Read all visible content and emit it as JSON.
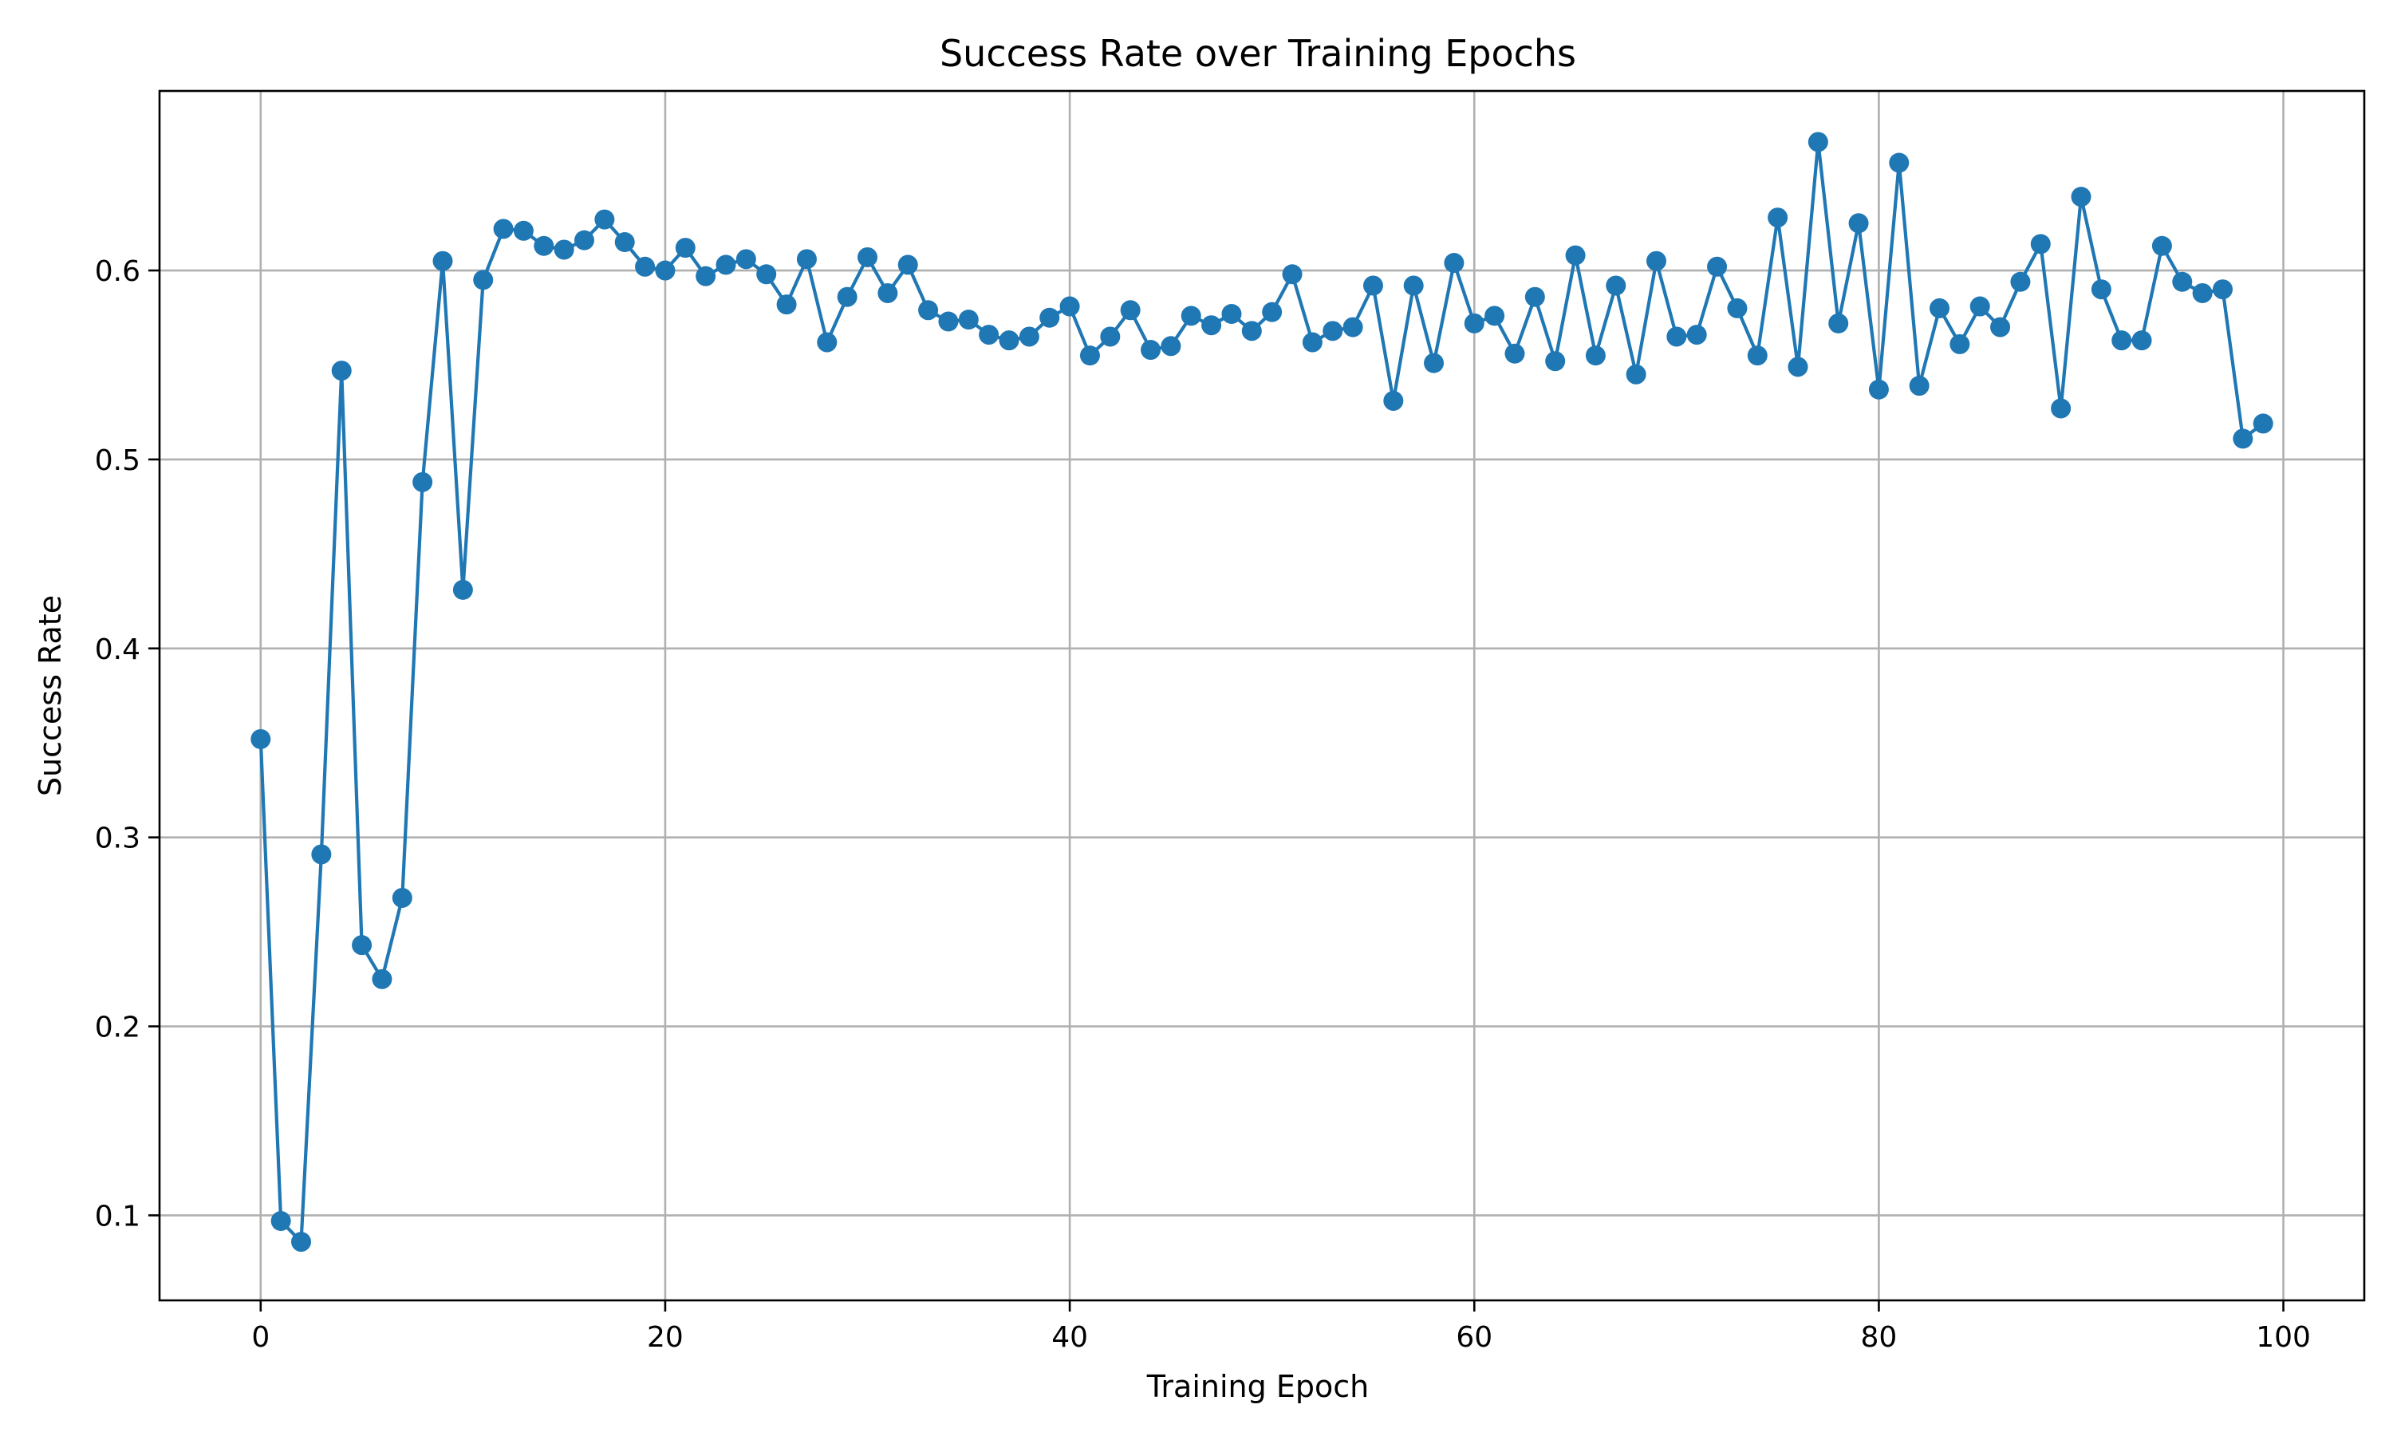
{
  "chart_data": {
    "type": "line",
    "title": "Success Rate over Training Epochs",
    "xlabel": "Training Epoch",
    "ylabel": "Success Rate",
    "xlim": [
      -5,
      104
    ],
    "ylim": [
      0.055,
      0.695
    ],
    "xticks": [
      0,
      20,
      40,
      60,
      80,
      100
    ],
    "yticks": [
      0.1,
      0.2,
      0.3,
      0.4,
      0.5,
      0.6
    ],
    "grid": true,
    "color": "#1f77b4",
    "marker": "circle",
    "x": [
      0,
      1,
      2,
      3,
      4,
      5,
      6,
      7,
      8,
      9,
      10,
      11,
      12,
      13,
      14,
      15,
      16,
      17,
      18,
      19,
      20,
      21,
      22,
      23,
      24,
      25,
      26,
      27,
      28,
      29,
      30,
      31,
      32,
      33,
      34,
      35,
      36,
      37,
      38,
      39,
      40,
      41,
      42,
      43,
      44,
      45,
      46,
      47,
      48,
      49,
      50,
      51,
      52,
      53,
      54,
      55,
      56,
      57,
      58,
      59,
      60,
      61,
      62,
      63,
      64,
      65,
      66,
      67,
      68,
      69,
      70,
      71,
      72,
      73,
      74,
      75,
      76,
      77,
      78,
      79,
      80,
      81,
      82,
      83,
      84,
      85,
      86,
      87,
      88,
      89,
      90,
      91,
      92,
      93,
      94,
      95,
      96,
      97,
      98,
      99
    ],
    "series": [
      {
        "values": [
          0.352,
          0.097,
          0.086,
          0.291,
          0.547,
          0.243,
          0.225,
          0.268,
          0.488,
          0.605,
          0.431,
          0.595,
          0.622,
          0.621,
          0.613,
          0.611,
          0.616,
          0.627,
          0.615,
          0.602,
          0.6,
          0.612,
          0.597,
          0.603,
          0.606,
          0.598,
          0.582,
          0.606,
          0.562,
          0.586,
          0.607,
          0.588,
          0.603,
          0.579,
          0.573,
          0.574,
          0.566,
          0.563,
          0.565,
          0.575,
          0.581,
          0.555,
          0.565,
          0.579,
          0.558,
          0.56,
          0.576,
          0.571,
          0.577,
          0.568,
          0.578,
          0.598,
          0.562,
          0.568,
          0.57,
          0.592,
          0.531,
          0.592,
          0.551,
          0.604,
          0.572,
          0.576,
          0.556,
          0.586,
          0.552,
          0.608,
          0.555,
          0.592,
          0.545,
          0.605,
          0.565,
          0.566,
          0.602,
          0.58,
          0.555,
          0.628,
          0.549,
          0.668,
          0.572,
          0.625,
          0.537,
          0.657,
          0.539,
          0.58,
          0.561,
          0.581,
          0.57,
          0.594,
          0.614,
          0.527,
          0.639,
          0.59,
          0.563,
          0.563,
          0.613,
          0.594,
          0.588,
          0.59,
          0.511,
          0.519
        ]
      }
    ]
  }
}
